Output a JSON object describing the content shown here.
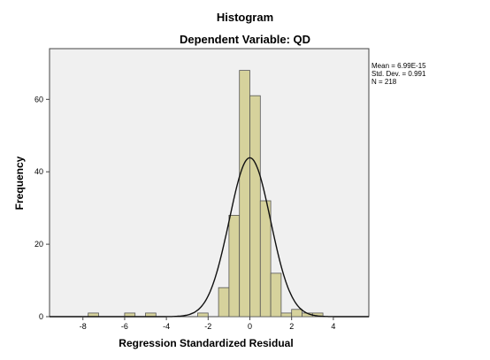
{
  "chart_data": {
    "type": "bar",
    "title": "Histogram",
    "subtitle": "Dependent Variable: QD",
    "xlabel": "Regression Standardized Residual",
    "ylabel": "Frequency",
    "xlim": [
      -9.6,
      5.7
    ],
    "ylim": [
      0,
      74
    ],
    "x_ticks": [
      -8,
      -6,
      -4,
      -2,
      0,
      2,
      4
    ],
    "y_ticks": [
      0,
      20,
      40,
      60
    ],
    "bin_width": 0.5,
    "bins": [
      {
        "x": -7.5,
        "y": 1
      },
      {
        "x": -5.75,
        "y": 1
      },
      {
        "x": -4.75,
        "y": 1
      },
      {
        "x": -2.25,
        "y": 1
      },
      {
        "x": -1.25,
        "y": 8
      },
      {
        "x": -0.75,
        "y": 28
      },
      {
        "x": -0.25,
        "y": 68
      },
      {
        "x": 0.25,
        "y": 61
      },
      {
        "x": 0.75,
        "y": 32
      },
      {
        "x": 1.25,
        "y": 12
      },
      {
        "x": 1.75,
        "y": 1
      },
      {
        "x": 2.25,
        "y": 2
      },
      {
        "x": 2.75,
        "y": 1
      },
      {
        "x": 3.25,
        "y": 1
      }
    ],
    "normal_curve": {
      "mean": 6.99e-15,
      "std": 0.991,
      "n": 218
    },
    "stats": {
      "mean": "Mean = 6.99E-15",
      "std_dev": "Std. Dev. = 0.991",
      "n": "N = 218"
    },
    "colors": {
      "bar_fill": "#d6d29c",
      "bar_stroke": "#555555",
      "plot_bg": "#f0f0f0",
      "curve": "#111111"
    },
    "grid": false,
    "legend": "none"
  }
}
